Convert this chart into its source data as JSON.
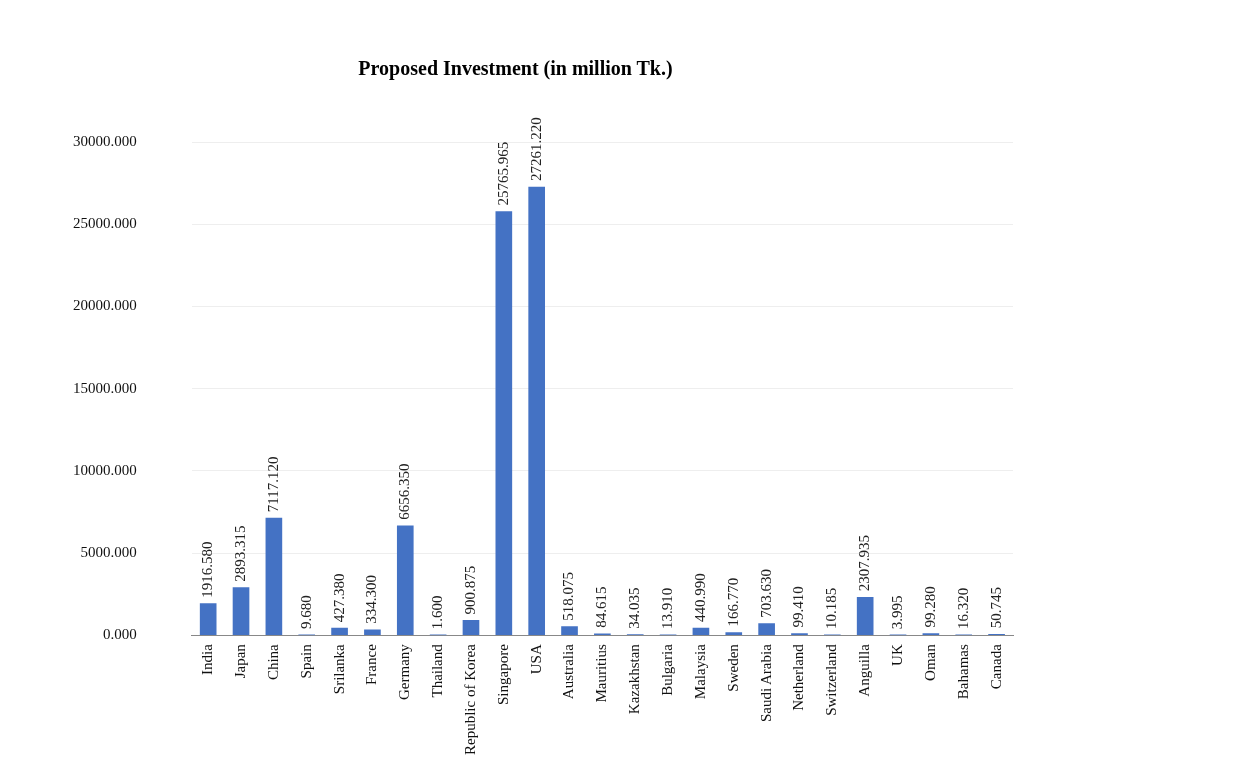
{
  "chart_data": {
    "type": "bar",
    "title": "Proposed Investment (in million Tk.)",
    "categories": [
      "India",
      "Japan",
      "China",
      "Spain",
      "Srilanka",
      "France",
      "Germany",
      "Thailand",
      "Republic of Korea",
      "Singapore",
      "USA",
      "Australia",
      "Mauritius",
      "Kazakhstan",
      "Bulgaria",
      "Malaysia",
      "Sweden",
      "Saudi Arabia",
      "Netherland",
      "Switzerland",
      "Anguilla",
      "UK",
      "Oman",
      "Bahamas",
      "Canada"
    ],
    "values": [
      1916.58,
      2893.315,
      7117.12,
      9.68,
      427.38,
      334.3,
      6656.35,
      1.6,
      900.875,
      25765.965,
      27261.22,
      518.075,
      84.615,
      34.035,
      13.91,
      440.99,
      166.77,
      703.63,
      99.41,
      10.185,
      2307.935,
      3.995,
      99.28,
      16.32,
      50.745
    ],
    "color": "#4472c4",
    "ylim": [
      0,
      30000
    ],
    "yticks": [
      {
        "value": 0,
        "label": "0.000"
      },
      {
        "value": 5000,
        "label": "5000.000"
      },
      {
        "value": 10000,
        "label": "10000.000"
      },
      {
        "value": 15000,
        "label": "15000.000"
      },
      {
        "value": 20000,
        "label": "20000.000"
      },
      {
        "value": 25000,
        "label": "25000.000"
      },
      {
        "value": 30000,
        "label": "30000.000"
      }
    ],
    "value_labels": [
      "1916.580",
      "2893.315",
      "7117.120",
      "9.680",
      "427.380",
      "334.300",
      "6656.350",
      "1.600",
      "900.875",
      "25765.965",
      "27261.220",
      "518.075",
      "84.615",
      "34.035",
      "13.910",
      "440.990",
      "166.770",
      "703.630",
      "99.410",
      "10.185",
      "2307.935",
      "3.995",
      "99.280",
      "16.320",
      "50.745"
    ],
    "grid": "y"
  }
}
